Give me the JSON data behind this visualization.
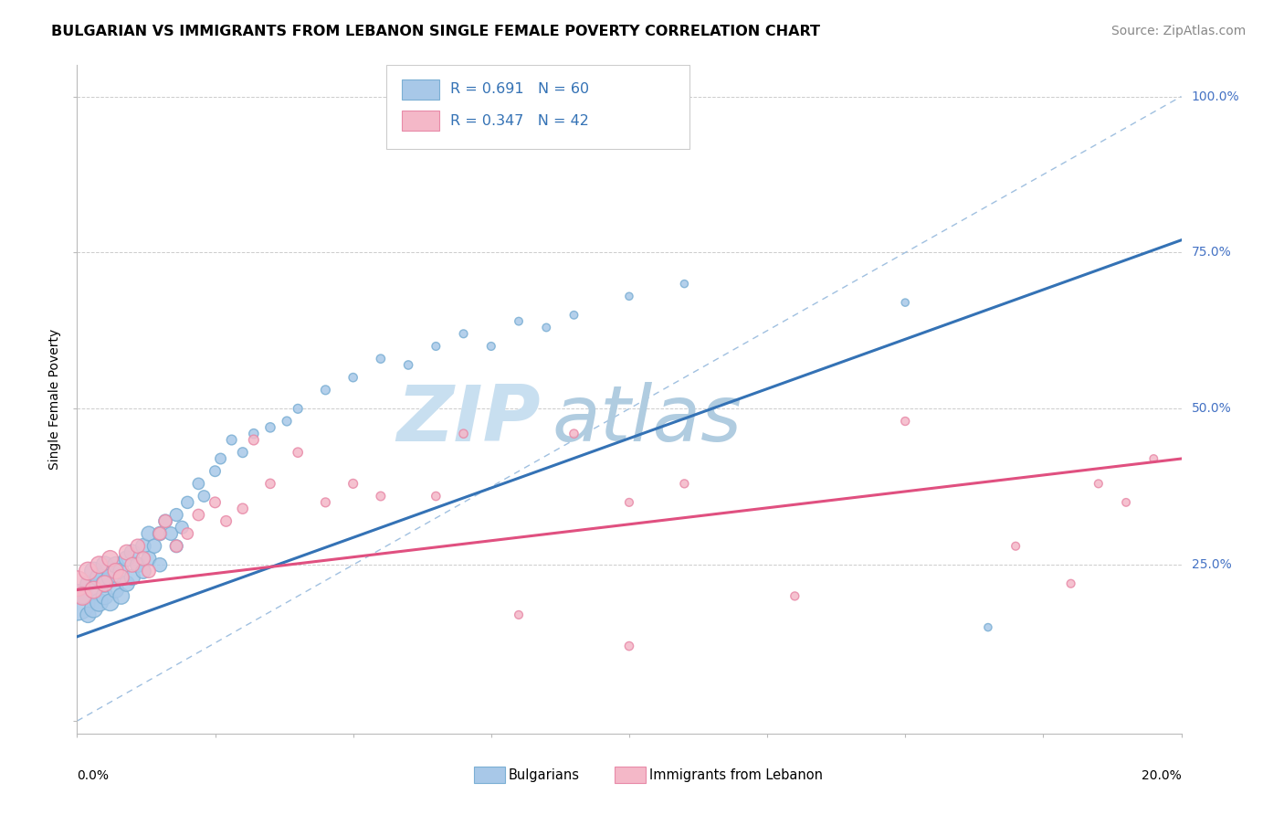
{
  "title": "BULGARIAN VS IMMIGRANTS FROM LEBANON SINGLE FEMALE POVERTY CORRELATION CHART",
  "source": "Source: ZipAtlas.com",
  "ylabel": "Single Female Poverty",
  "xlim": [
    0.0,
    0.2
  ],
  "ylim": [
    -0.02,
    1.05
  ],
  "legend_r1": "R = 0.691",
  "legend_n1": "N = 60",
  "legend_r2": "R = 0.347",
  "legend_n2": "N = 42",
  "blue_color": "#a8c8e8",
  "pink_color": "#f4b8c8",
  "blue_edge_color": "#7bafd4",
  "pink_edge_color": "#e88aa8",
  "blue_line_color": "#3472b5",
  "pink_line_color": "#e05080",
  "diag_line_color": "#a0c0e0",
  "watermark_zip_color": "#c8dff0",
  "watermark_atlas_color": "#b0cce0",
  "title_fontsize": 11.5,
  "source_fontsize": 10,
  "label_fontsize": 10,
  "blue_scatter_x": [
    0.0,
    0.001,
    0.002,
    0.002,
    0.003,
    0.003,
    0.003,
    0.004,
    0.004,
    0.005,
    0.005,
    0.005,
    0.006,
    0.006,
    0.007,
    0.007,
    0.008,
    0.008,
    0.009,
    0.009,
    0.01,
    0.01,
    0.011,
    0.012,
    0.012,
    0.013,
    0.013,
    0.014,
    0.015,
    0.015,
    0.016,
    0.017,
    0.018,
    0.018,
    0.019,
    0.02,
    0.022,
    0.023,
    0.025,
    0.026,
    0.028,
    0.03,
    0.032,
    0.035,
    0.038,
    0.04,
    0.045,
    0.05,
    0.055,
    0.06,
    0.065,
    0.07,
    0.075,
    0.08,
    0.085,
    0.09,
    0.1,
    0.11,
    0.15,
    0.165
  ],
  "blue_scatter_y": [
    0.19,
    0.2,
    0.17,
    0.22,
    0.18,
    0.21,
    0.24,
    0.19,
    0.23,
    0.2,
    0.22,
    0.25,
    0.19,
    0.23,
    0.21,
    0.25,
    0.2,
    0.24,
    0.22,
    0.26,
    0.23,
    0.27,
    0.25,
    0.24,
    0.28,
    0.26,
    0.3,
    0.28,
    0.25,
    0.3,
    0.32,
    0.3,
    0.28,
    0.33,
    0.31,
    0.35,
    0.38,
    0.36,
    0.4,
    0.42,
    0.45,
    0.43,
    0.46,
    0.47,
    0.48,
    0.5,
    0.53,
    0.55,
    0.58,
    0.57,
    0.6,
    0.62,
    0.6,
    0.64,
    0.63,
    0.65,
    0.68,
    0.7,
    0.67,
    0.15
  ],
  "blue_scatter_sizes": [
    800,
    150,
    150,
    150,
    200,
    200,
    200,
    200,
    200,
    180,
    180,
    180,
    180,
    180,
    160,
    160,
    160,
    160,
    150,
    150,
    150,
    150,
    140,
    140,
    140,
    130,
    130,
    120,
    120,
    120,
    110,
    110,
    100,
    100,
    100,
    90,
    80,
    80,
    70,
    70,
    60,
    60,
    55,
    55,
    50,
    50,
    50,
    45,
    45,
    45,
    40,
    40,
    40,
    38,
    38,
    38,
    35,
    35,
    35,
    35
  ],
  "pink_scatter_x": [
    0.0,
    0.001,
    0.002,
    0.003,
    0.004,
    0.005,
    0.006,
    0.007,
    0.008,
    0.009,
    0.01,
    0.011,
    0.012,
    0.013,
    0.015,
    0.016,
    0.018,
    0.02,
    0.022,
    0.025,
    0.027,
    0.03,
    0.032,
    0.035,
    0.04,
    0.045,
    0.05,
    0.055,
    0.065,
    0.07,
    0.09,
    0.1,
    0.11,
    0.13,
    0.15,
    0.17,
    0.18,
    0.185,
    0.19,
    0.195,
    0.1,
    0.08
  ],
  "pink_scatter_y": [
    0.22,
    0.2,
    0.24,
    0.21,
    0.25,
    0.22,
    0.26,
    0.24,
    0.23,
    0.27,
    0.25,
    0.28,
    0.26,
    0.24,
    0.3,
    0.32,
    0.28,
    0.3,
    0.33,
    0.35,
    0.32,
    0.34,
    0.45,
    0.38,
    0.43,
    0.35,
    0.38,
    0.36,
    0.36,
    0.46,
    0.46,
    0.12,
    0.38,
    0.2,
    0.48,
    0.28,
    0.22,
    0.38,
    0.35,
    0.42,
    0.35,
    0.17
  ],
  "pink_scatter_sizes": [
    400,
    200,
    200,
    180,
    180,
    160,
    160,
    150,
    150,
    140,
    130,
    120,
    120,
    110,
    100,
    100,
    90,
    80,
    80,
    70,
    70,
    65,
    60,
    55,
    55,
    50,
    50,
    48,
    45,
    45,
    45,
    45,
    42,
    42,
    42,
    40,
    40,
    40,
    38,
    38,
    40,
    40
  ],
  "blue_trend_x": [
    0.0,
    0.2
  ],
  "blue_trend_y": [
    0.135,
    0.77
  ],
  "pink_trend_x": [
    0.0,
    0.2
  ],
  "pink_trend_y": [
    0.21,
    0.42
  ]
}
